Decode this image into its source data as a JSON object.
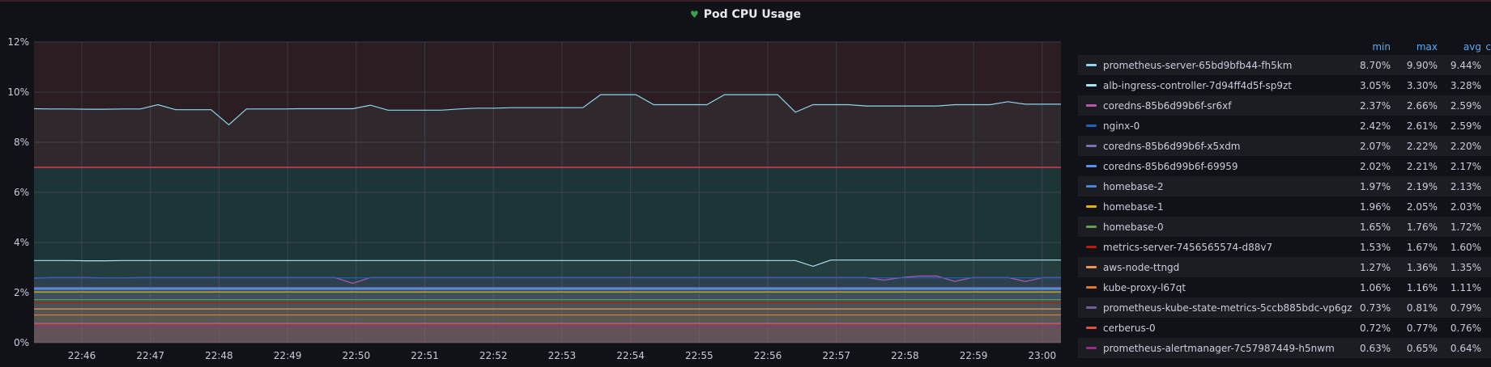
{
  "panel": {
    "title": "Pod CPU Usage",
    "status_icon": "heart-icon",
    "status_color": "#37a34b"
  },
  "legend": {
    "headers": {
      "min": "min",
      "max": "max",
      "avg": "avg",
      "current": "c"
    }
  },
  "chart_data": {
    "type": "line",
    "title": "Pod CPU Usage",
    "xlabel": "",
    "ylabel": "",
    "ylim": [
      0,
      12
    ],
    "yticks": [
      "0%",
      "2%",
      "4%",
      "6%",
      "8%",
      "10%",
      "12%"
    ],
    "x_tick_labels": [
      "22:46",
      "22:47",
      "22:48",
      "22:49",
      "22:50",
      "22:51",
      "22:52",
      "22:53",
      "22:54",
      "22:55",
      "22:56",
      "22:57",
      "22:58",
      "22:59",
      "23:00"
    ],
    "grid": true,
    "legend_position": "right",
    "thresholds": [
      {
        "value": 7,
        "color": "#e02f44",
        "fill_above": "#2b1d21"
      },
      {
        "fill_below": "#162b2b"
      }
    ],
    "series": [
      {
        "name": "prometheus-server-65bd9bfb44-fh5km",
        "color": "#8ad7ee",
        "min": "8.70%",
        "max": "9.90%",
        "avg": "9.44%",
        "values": [
          9.34,
          9.33,
          9.33,
          9.32,
          9.32,
          9.33,
          9.33,
          9.5,
          9.3,
          9.3,
          9.3,
          8.7,
          9.33,
          9.33,
          9.33,
          9.34,
          9.34,
          9.34,
          9.34,
          9.48,
          9.28,
          9.28,
          9.28,
          9.28,
          9.33,
          9.36,
          9.36,
          9.38,
          9.38,
          9.38,
          9.38,
          9.38,
          9.9,
          9.9,
          9.9,
          9.5,
          9.5,
          9.5,
          9.5,
          9.9,
          9.9,
          9.9,
          9.9,
          9.2,
          9.5,
          9.5,
          9.5,
          9.45,
          9.45,
          9.45,
          9.45,
          9.45,
          9.5,
          9.5,
          9.5,
          9.62,
          9.52,
          9.52,
          9.52
        ]
      },
      {
        "name": "alb-ingress-controller-7d94ff4d5f-sp9zt",
        "color": "#a9e4f2",
        "min": "3.05%",
        "max": "3.30%",
        "avg": "3.28%",
        "values": [
          3.28,
          3.28,
          3.28,
          3.27,
          3.27,
          3.28,
          3.28,
          3.28,
          3.28,
          3.28,
          3.28,
          3.28,
          3.28,
          3.28,
          3.28,
          3.28,
          3.28,
          3.28,
          3.28,
          3.28,
          3.28,
          3.28,
          3.28,
          3.28,
          3.28,
          3.28,
          3.28,
          3.28,
          3.28,
          3.28,
          3.28,
          3.28,
          3.28,
          3.28,
          3.28,
          3.28,
          3.28,
          3.28,
          3.28,
          3.28,
          3.28,
          3.28,
          3.28,
          3.28,
          3.05,
          3.3,
          3.3,
          3.3,
          3.3,
          3.3,
          3.3,
          3.3,
          3.3,
          3.3,
          3.3,
          3.3,
          3.3,
          3.3,
          3.3
        ]
      },
      {
        "name": "coredns-85b6d99b6f-sr6xf",
        "color": "#ba55b0",
        "min": "2.37%",
        "max": "2.66%",
        "avg": "2.59%",
        "values": [
          2.58,
          2.6,
          2.6,
          2.6,
          2.59,
          2.59,
          2.6,
          2.6,
          2.6,
          2.6,
          2.6,
          2.6,
          2.6,
          2.6,
          2.6,
          2.6,
          2.6,
          2.6,
          2.37,
          2.6,
          2.6,
          2.6,
          2.6,
          2.6,
          2.6,
          2.6,
          2.6,
          2.6,
          2.6,
          2.6,
          2.6,
          2.6,
          2.6,
          2.6,
          2.6,
          2.6,
          2.6,
          2.6,
          2.6,
          2.6,
          2.6,
          2.6,
          2.6,
          2.6,
          2.6,
          2.6,
          2.6,
          2.6,
          2.5,
          2.6,
          2.66,
          2.66,
          2.45,
          2.6,
          2.6,
          2.6,
          2.45,
          2.6,
          2.6
        ]
      },
      {
        "name": "nginx-0",
        "color": "#1f60c4",
        "min": "2.42%",
        "max": "2.61%",
        "avg": "2.59%",
        "values": [
          2.59,
          2.59,
          2.59,
          2.59,
          2.59,
          2.59,
          2.59,
          2.59,
          2.59,
          2.59,
          2.59,
          2.59,
          2.59,
          2.59,
          2.59,
          2.59,
          2.59,
          2.59,
          2.59,
          2.59,
          2.59,
          2.59,
          2.59,
          2.59,
          2.59,
          2.59,
          2.59,
          2.59,
          2.59,
          2.59,
          2.59,
          2.59,
          2.59,
          2.59,
          2.59,
          2.59,
          2.59,
          2.59,
          2.59,
          2.59,
          2.59,
          2.59,
          2.59,
          2.59,
          2.59,
          2.59,
          2.59,
          2.59,
          2.59,
          2.59,
          2.59,
          2.59,
          2.59,
          2.59,
          2.59,
          2.59,
          2.59,
          2.59,
          2.59
        ]
      },
      {
        "name": "coredns-85b6d99b6f-x5xdm",
        "color": "#806eb7",
        "min": "2.07%",
        "max": "2.22%",
        "avg": "2.20%",
        "values": [
          2.2,
          2.2,
          2.2,
          2.2,
          2.2,
          2.2,
          2.2,
          2.2,
          2.2,
          2.2,
          2.2,
          2.2,
          2.2,
          2.2,
          2.2,
          2.2,
          2.2,
          2.2,
          2.2,
          2.2,
          2.2,
          2.2,
          2.2,
          2.2,
          2.2,
          2.2,
          2.2,
          2.2,
          2.2,
          2.2,
          2.2,
          2.2,
          2.2,
          2.2,
          2.2,
          2.2,
          2.2,
          2.2,
          2.2,
          2.2,
          2.2,
          2.2,
          2.2,
          2.2,
          2.2,
          2.2,
          2.2,
          2.2,
          2.2,
          2.2,
          2.2,
          2.2,
          2.2,
          2.2,
          2.2,
          2.2,
          2.2,
          2.2,
          2.2
        ]
      },
      {
        "name": "coredns-85b6d99b6f-69959",
        "color": "#5794f2",
        "min": "2.02%",
        "max": "2.21%",
        "avg": "2.17%",
        "values": [
          2.16,
          2.16,
          2.16,
          2.16,
          2.16,
          2.16,
          2.16,
          2.16,
          2.16,
          2.16,
          2.16,
          2.16,
          2.16,
          2.16,
          2.16,
          2.16,
          2.16,
          2.16,
          2.16,
          2.16,
          2.16,
          2.16,
          2.16,
          2.16,
          2.16,
          2.16,
          2.16,
          2.16,
          2.16,
          2.16,
          2.16,
          2.16,
          2.16,
          2.16,
          2.16,
          2.16,
          2.16,
          2.16,
          2.16,
          2.16,
          2.16,
          2.16,
          2.16,
          2.16,
          2.16,
          2.16,
          2.16,
          2.16,
          2.16,
          2.16,
          2.16,
          2.16,
          2.16,
          2.16,
          2.16,
          2.16,
          2.16,
          2.16,
          2.16
        ]
      },
      {
        "name": "homebase-2",
        "color": "#4a86d6",
        "min": "1.97%",
        "max": "2.19%",
        "avg": "2.13%",
        "values": [
          2.13,
          2.13,
          2.13,
          2.13,
          2.13,
          2.13,
          2.13,
          2.13,
          2.13,
          2.13,
          2.13,
          2.13,
          2.13,
          2.13,
          2.13,
          2.13,
          2.13,
          2.13,
          2.13,
          2.13,
          2.13,
          2.13,
          2.13,
          2.13,
          2.13,
          2.13,
          2.13,
          2.13,
          2.13,
          2.13,
          2.13,
          2.13,
          2.13,
          2.13,
          2.13,
          2.13,
          2.13,
          2.13,
          2.13,
          2.13,
          2.13,
          2.13,
          2.13,
          2.13,
          2.13,
          2.13,
          2.13,
          2.13,
          2.13,
          2.13,
          2.13,
          2.13,
          2.13,
          2.13,
          2.13,
          2.13,
          2.13,
          2.13,
          2.13
        ]
      },
      {
        "name": "homebase-1",
        "color": "#e0b400",
        "min": "1.96%",
        "max": "2.05%",
        "avg": "2.03%",
        "values": [
          2.03,
          2.03,
          2.03,
          2.03,
          2.03,
          2.03,
          2.03,
          2.03,
          2.03,
          2.03,
          2.03,
          2.03,
          2.03,
          2.03,
          2.03,
          2.03,
          2.03,
          2.03,
          2.03,
          2.03,
          2.03,
          2.03,
          2.03,
          2.03,
          2.03,
          2.03,
          2.03,
          2.03,
          2.03,
          2.03,
          2.03,
          2.03,
          2.03,
          2.03,
          2.03,
          2.03,
          2.03,
          2.03,
          2.03,
          2.03,
          2.03,
          2.03,
          2.03,
          2.03,
          2.03,
          2.03,
          2.03,
          2.03,
          2.03,
          2.03,
          2.03,
          2.03,
          2.03,
          2.03,
          2.03,
          2.03,
          2.03,
          2.03,
          2.03
        ]
      },
      {
        "name": "homebase-0",
        "color": "#629e51",
        "min": "1.65%",
        "max": "1.76%",
        "avg": "1.72%",
        "values": [
          1.72,
          1.72,
          1.72,
          1.72,
          1.72,
          1.72,
          1.72,
          1.72,
          1.72,
          1.72,
          1.72,
          1.72,
          1.72,
          1.72,
          1.72,
          1.72,
          1.72,
          1.72,
          1.72,
          1.72,
          1.72,
          1.72,
          1.72,
          1.72,
          1.72,
          1.72,
          1.72,
          1.72,
          1.72,
          1.72,
          1.72,
          1.72,
          1.72,
          1.72,
          1.72,
          1.72,
          1.72,
          1.72,
          1.72,
          1.72,
          1.72,
          1.72,
          1.72,
          1.72,
          1.72,
          1.72,
          1.72,
          1.72,
          1.72,
          1.72,
          1.72,
          1.72,
          1.72,
          1.72,
          1.72,
          1.72,
          1.72,
          1.72,
          1.72
        ]
      },
      {
        "name": "metrics-server-7456565574-d88v7",
        "color": "#bf1b00",
        "min": "1.53%",
        "max": "1.67%",
        "avg": "1.60%",
        "values": [
          1.6,
          1.6,
          1.6,
          1.6,
          1.6,
          1.6,
          1.6,
          1.6,
          1.6,
          1.6,
          1.6,
          1.6,
          1.6,
          1.6,
          1.6,
          1.6,
          1.6,
          1.6,
          1.6,
          1.6,
          1.6,
          1.6,
          1.6,
          1.6,
          1.6,
          1.6,
          1.6,
          1.6,
          1.6,
          1.6,
          1.6,
          1.6,
          1.6,
          1.6,
          1.6,
          1.6,
          1.6,
          1.6,
          1.6,
          1.6,
          1.6,
          1.6,
          1.6,
          1.6,
          1.6,
          1.6,
          1.6,
          1.6,
          1.6,
          1.6,
          1.6,
          1.6,
          1.6,
          1.6,
          1.6,
          1.6,
          1.6,
          1.6,
          1.6
        ]
      },
      {
        "name": "aws-node-ttngd",
        "color": "#f2934e",
        "min": "1.27%",
        "max": "1.36%",
        "avg": "1.35%",
        "values": [
          1.35,
          1.35,
          1.35,
          1.35,
          1.35,
          1.35,
          1.35,
          1.35,
          1.35,
          1.35,
          1.35,
          1.35,
          1.35,
          1.35,
          1.35,
          1.35,
          1.35,
          1.35,
          1.35,
          1.35,
          1.35,
          1.35,
          1.35,
          1.35,
          1.35,
          1.35,
          1.35,
          1.35,
          1.35,
          1.35,
          1.35,
          1.35,
          1.35,
          1.35,
          1.35,
          1.35,
          1.35,
          1.35,
          1.35,
          1.35,
          1.35,
          1.35,
          1.35,
          1.35,
          1.35,
          1.35,
          1.35,
          1.35,
          1.35,
          1.35,
          1.35,
          1.35,
          1.35,
          1.35,
          1.35,
          1.35,
          1.35,
          1.35,
          1.35
        ]
      },
      {
        "name": "kube-proxy-l67qt",
        "color": "#e0752d",
        "min": "1.06%",
        "max": "1.16%",
        "avg": "1.11%",
        "values": [
          1.11,
          1.11,
          1.11,
          1.11,
          1.11,
          1.11,
          1.11,
          1.11,
          1.11,
          1.11,
          1.11,
          1.11,
          1.11,
          1.11,
          1.11,
          1.11,
          1.11,
          1.11,
          1.11,
          1.11,
          1.11,
          1.11,
          1.11,
          1.11,
          1.11,
          1.11,
          1.11,
          1.11,
          1.11,
          1.11,
          1.11,
          1.11,
          1.11,
          1.11,
          1.11,
          1.11,
          1.11,
          1.11,
          1.11,
          1.11,
          1.11,
          1.11,
          1.11,
          1.11,
          1.11,
          1.11,
          1.11,
          1.11,
          1.11,
          1.11,
          1.11,
          1.11,
          1.11,
          1.11,
          1.11,
          1.11,
          1.11,
          1.11,
          1.11
        ]
      },
      {
        "name": "prometheus-kube-state-metrics-5ccb885bdc-vp6gz",
        "color": "#705da0",
        "min": "0.73%",
        "max": "0.81%",
        "avg": "0.79%",
        "values": [
          0.79,
          0.79,
          0.79,
          0.79,
          0.79,
          0.79,
          0.79,
          0.79,
          0.79,
          0.79,
          0.79,
          0.79,
          0.79,
          0.79,
          0.79,
          0.79,
          0.79,
          0.79,
          0.79,
          0.79,
          0.79,
          0.79,
          0.79,
          0.79,
          0.79,
          0.79,
          0.79,
          0.79,
          0.79,
          0.79,
          0.79,
          0.79,
          0.79,
          0.79,
          0.79,
          0.79,
          0.79,
          0.79,
          0.79,
          0.79,
          0.79,
          0.79,
          0.79,
          0.79,
          0.79,
          0.79,
          0.79,
          0.79,
          0.79,
          0.79,
          0.79,
          0.79,
          0.79,
          0.79,
          0.79,
          0.79,
          0.79,
          0.79,
          0.79
        ]
      },
      {
        "name": "cerberus-0",
        "color": "#e24d42",
        "min": "0.72%",
        "max": "0.77%",
        "avg": "0.76%",
        "values": [
          0.76,
          0.76,
          0.76,
          0.76,
          0.76,
          0.76,
          0.76,
          0.76,
          0.76,
          0.76,
          0.76,
          0.76,
          0.76,
          0.76,
          0.76,
          0.76,
          0.76,
          0.76,
          0.76,
          0.76,
          0.76,
          0.76,
          0.76,
          0.76,
          0.76,
          0.76,
          0.76,
          0.76,
          0.76,
          0.76,
          0.76,
          0.76,
          0.76,
          0.76,
          0.76,
          0.76,
          0.76,
          0.76,
          0.76,
          0.76,
          0.76,
          0.76,
          0.76,
          0.76,
          0.76,
          0.76,
          0.76,
          0.76,
          0.76,
          0.76,
          0.76,
          0.76,
          0.76,
          0.76,
          0.76,
          0.76,
          0.76,
          0.76,
          0.76
        ]
      },
      {
        "name": "prometheus-alertmanager-7c57987449-h5nwm",
        "color": "#962d82",
        "min": "0.63%",
        "max": "0.65%",
        "avg": "0.64%",
        "values": [
          0.64,
          0.64,
          0.64,
          0.64,
          0.64,
          0.64,
          0.64,
          0.64,
          0.64,
          0.64,
          0.64,
          0.64,
          0.64,
          0.64,
          0.64,
          0.64,
          0.64,
          0.64,
          0.64,
          0.64,
          0.64,
          0.64,
          0.64,
          0.64,
          0.64,
          0.64,
          0.64,
          0.64,
          0.64,
          0.64,
          0.64,
          0.64,
          0.64,
          0.64,
          0.64,
          0.64,
          0.64,
          0.64,
          0.64,
          0.64,
          0.64,
          0.64,
          0.64,
          0.64,
          0.64,
          0.64,
          0.64,
          0.64,
          0.64,
          0.64,
          0.64,
          0.64,
          0.64,
          0.64,
          0.64,
          0.64,
          0.64,
          0.64,
          0.64
        ]
      }
    ]
  }
}
